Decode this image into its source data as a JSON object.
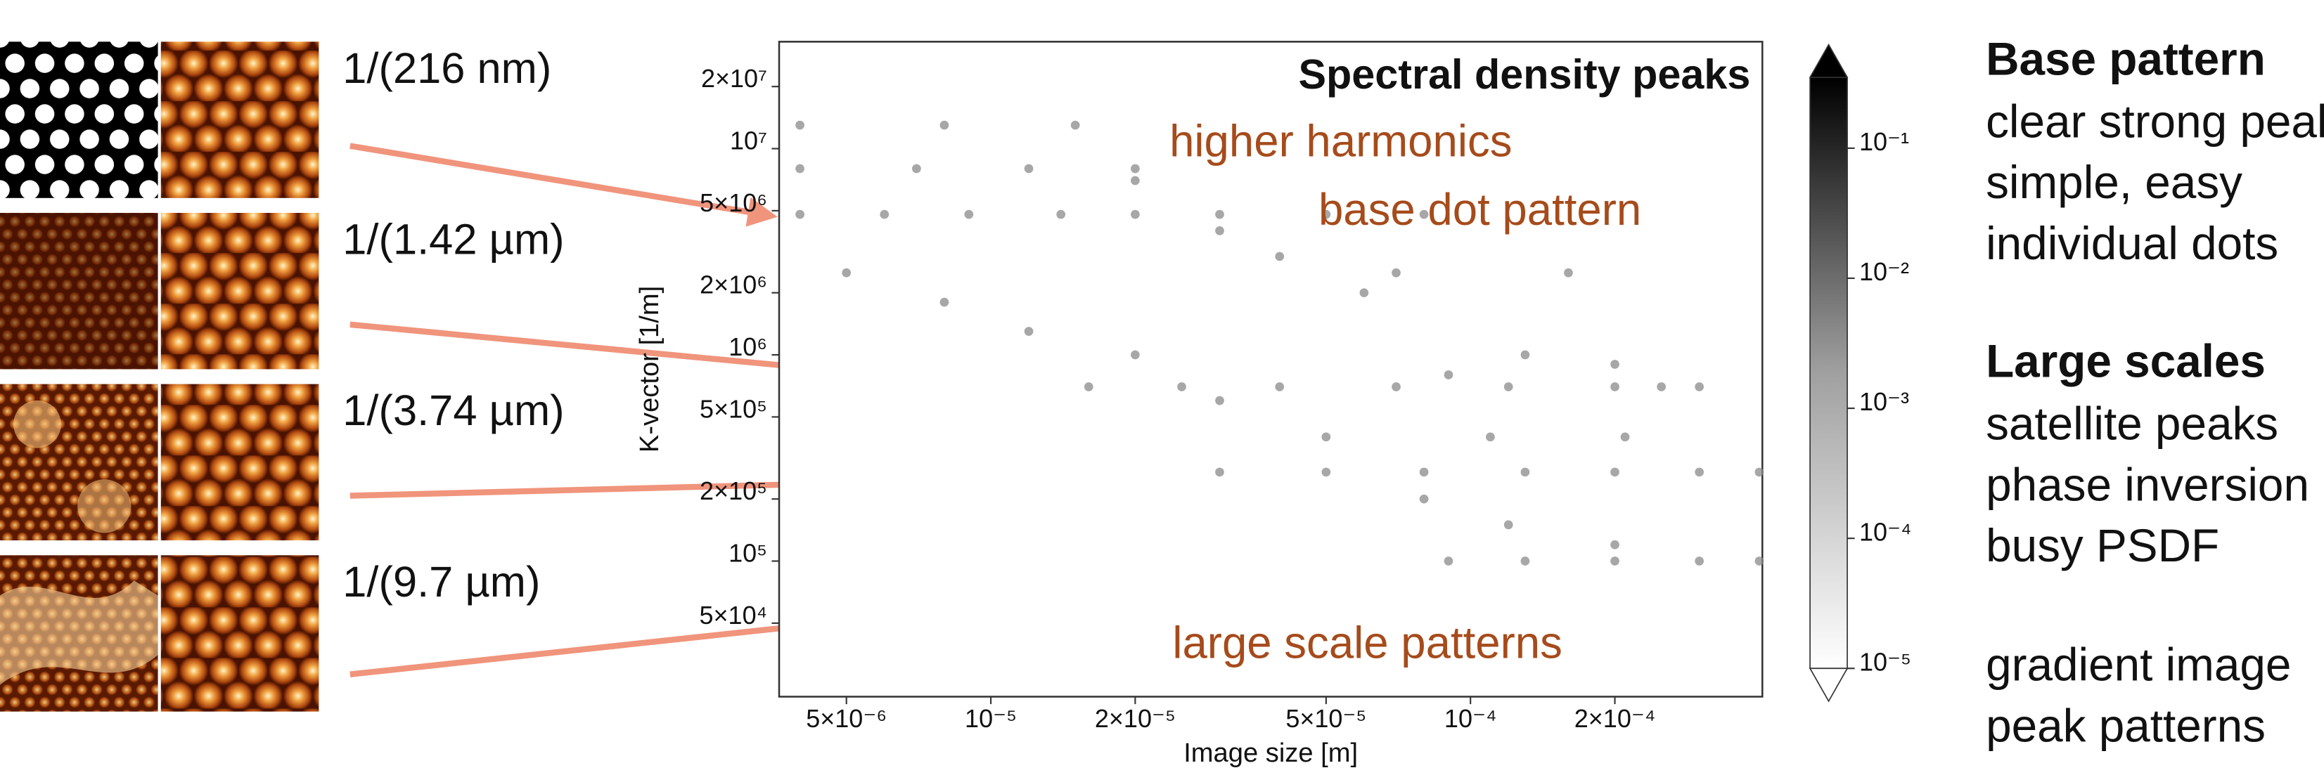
{
  "chart_data": {
    "type": "scatter",
    "title": "Spectral density peaks",
    "x_label": "Image size [m]",
    "y_label": "K-vector [1/m]",
    "annotations": [
      "higher harmonics",
      "base dot pattern",
      "large scale patterns"
    ],
    "x_scale": "log",
    "y_scale": "log",
    "xlim": [
      3.62e-06,
      0.000406
    ],
    "ylim": [
      22000.0,
      33000000.0
    ],
    "xticks": [
      {
        "value": 5e-06,
        "label": "5×10⁻⁶"
      },
      {
        "value": 1e-05,
        "label": "10⁻⁵"
      },
      {
        "value": 2e-05,
        "label": "2×10⁻⁵"
      },
      {
        "value": 5e-05,
        "label": "5×10⁻⁵"
      },
      {
        "value": 0.0001,
        "label": "10⁻⁴"
      },
      {
        "value": 0.0002,
        "label": "2×10⁻⁴"
      }
    ],
    "yticks": [
      {
        "value": 50000.0,
        "label": "5×10⁴"
      },
      {
        "value": 100000.0,
        "label": "10⁵"
      },
      {
        "value": 200000.0,
        "label": "2×10⁵"
      },
      {
        "value": 500000.0,
        "label": "5×10⁵"
      },
      {
        "value": 1000000.0,
        "label": "10⁶"
      },
      {
        "value": 2000000.0,
        "label": "2×10⁶"
      },
      {
        "value": 5000000.0,
        "label": "5×10⁶"
      },
      {
        "value": 10000000.0,
        "label": "10⁷"
      },
      {
        "value": 20000000.0,
        "label": "2×10⁷"
      }
    ],
    "color": "#8a8a8a",
    "x": [
      4e-06,
      6e-06,
      9e-06,
      1.4e-05,
      2e-05,
      3e-05,
      5e-05,
      8e-05,
      4e-06,
      7e-06,
      1.2e-05,
      2e-05,
      4e-06,
      8e-06,
      1.5e-05,
      1.6e-05,
      2.5e-05,
      4e-05,
      7e-05,
      0.00012,
      0.0002,
      0.0003,
      3e-05,
      5e-05,
      8e-05,
      0.00013,
      0.0002,
      0.0003,
      0.0004,
      9e-05,
      0.00013,
      0.0002,
      0.0003,
      0.0004,
      5e-06,
      8e-06,
      1.2e-05,
      2e-05,
      3e-05,
      5e-05,
      8e-05,
      0.00012,
      0.0002,
      2e-05,
      3e-05,
      4e-05,
      6e-05,
      7e-05,
      9e-05,
      0.00011,
      0.00013,
      0.00016,
      0.0002,
      0.00021,
      0.00025
    ],
    "values": [
      4800000.0,
      4800000.0,
      4800000.0,
      4800000.0,
      4800000.0,
      4800000.0,
      4800000.0,
      4800000.0,
      8000000.0,
      8000000.0,
      8000000.0,
      8000000.0,
      13000000.0,
      13000000.0,
      13000000.0,
      700000.0,
      700000.0,
      700000.0,
      700000.0,
      700000.0,
      700000.0,
      700000.0,
      270000.0,
      270000.0,
      270000.0,
      270000.0,
      270000.0,
      270000.0,
      270000.0,
      100000.0,
      100000.0,
      100000.0,
      100000.0,
      100000.0,
      2500000.0,
      1800000.0,
      1300000.0,
      1000000.0,
      600000.0,
      400000.0,
      200000.0,
      150000.0,
      120000.0,
      7000000.0,
      4000000.0,
      3000000.0,
      2000000.0,
      2500000.0,
      800000.0,
      400000.0,
      1000000.0,
      2500000.0,
      900000.0,
      400000.0,
      700000.0
    ],
    "colorbar": {
      "scale": "log",
      "extend": "both",
      "lim": [
        1e-05,
        0.35
      ],
      "ticks": [
        {
          "value": 0.1,
          "label": "10⁻¹"
        },
        {
          "value": 0.01,
          "label": "10⁻²"
        },
        {
          "value": 0.001,
          "label": "10⁻³"
        },
        {
          "value": 0.0001,
          "label": "10⁻⁴"
        },
        {
          "value": 1e-05,
          "label": "10⁻⁵"
        }
      ]
    }
  },
  "panels": [
    {
      "label": "1/(216 nm)"
    },
    {
      "label": "1/(1.42 µm)"
    },
    {
      "label": "1/(3.74 µm)"
    },
    {
      "label": "1/(9.7 µm)"
    }
  ],
  "notes": [
    {
      "heading": "Base pattern",
      "lines": [
        "clear strong peak",
        "simple, easy",
        "individual dots"
      ]
    },
    {
      "heading": "Large scales",
      "lines": [
        "satellite peaks",
        "phase inversion",
        "busy PSDF"
      ]
    },
    {
      "lines": [
        "gradient image",
        "peak patterns"
      ]
    }
  ]
}
